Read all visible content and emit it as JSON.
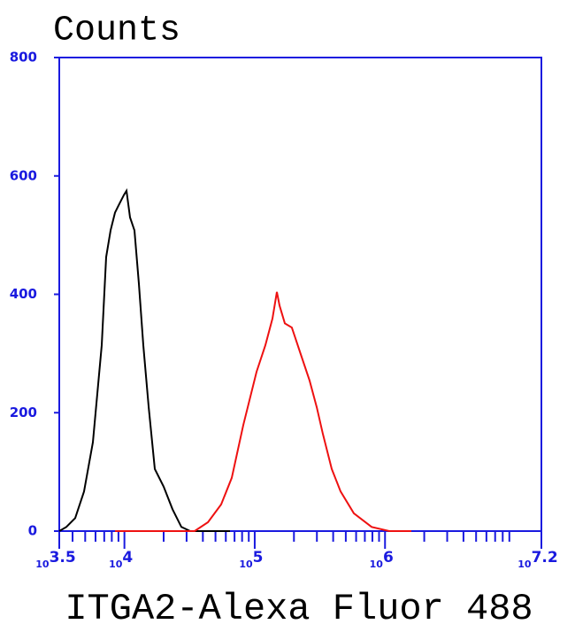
{
  "chart_data": {
    "type": "line",
    "title": "Counts",
    "x_label": "ITGA2-Alexa Fluor 488",
    "xscale": "log",
    "xlim": [
      3162.28,
      15848932
    ],
    "xticks": [
      {
        "value": 3162.28,
        "label": "10",
        "exponent": "3.5"
      },
      {
        "value": 10000,
        "label": "10",
        "exponent": "4"
      },
      {
        "value": 100000,
        "label": "10",
        "exponent": "5"
      },
      {
        "value": 1000000,
        "label": "10",
        "exponent": "6"
      },
      {
        "value": 15848932,
        "label": "10",
        "exponent": "7.2"
      }
    ],
    "ylim": [
      0,
      800
    ],
    "yticks": [
      0,
      200,
      400,
      600,
      800
    ],
    "axis_color": "#1a1adf",
    "series": [
      {
        "color": "#000000",
        "x": [
          3162,
          3581,
          4188,
          4898,
          5728,
          6699,
          7244,
          7834,
          8472,
          9162,
          9909,
          10380,
          11050,
          11940,
          12910,
          13960,
          15350,
          17110,
          20000,
          23390,
          27350,
          31990,
          64570
        ],
        "values": [
          0,
          7,
          22,
          67,
          150,
          314,
          463,
          508,
          538,
          553,
          568,
          575,
          530,
          508,
          418,
          314,
          209,
          105,
          75,
          37,
          7,
          0,
          0
        ]
      },
      {
        "color": "#ee1111",
        "x": [
          8472,
          34590,
          43750,
          55260,
          66630,
          81660,
          103300,
          120800,
          136800,
          147900,
          155000,
          170200,
          192800,
          225400,
          263600,
          299200,
          333600,
          390000,
          456000,
          576800,
          788900,
          1077000,
          1592000
        ],
        "values": [
          0,
          0,
          15,
          45,
          90,
          179,
          269,
          314,
          359,
          404,
          381,
          351,
          344,
          299,
          254,
          209,
          164,
          105,
          67,
          30,
          7,
          0,
          0
        ]
      }
    ]
  }
}
